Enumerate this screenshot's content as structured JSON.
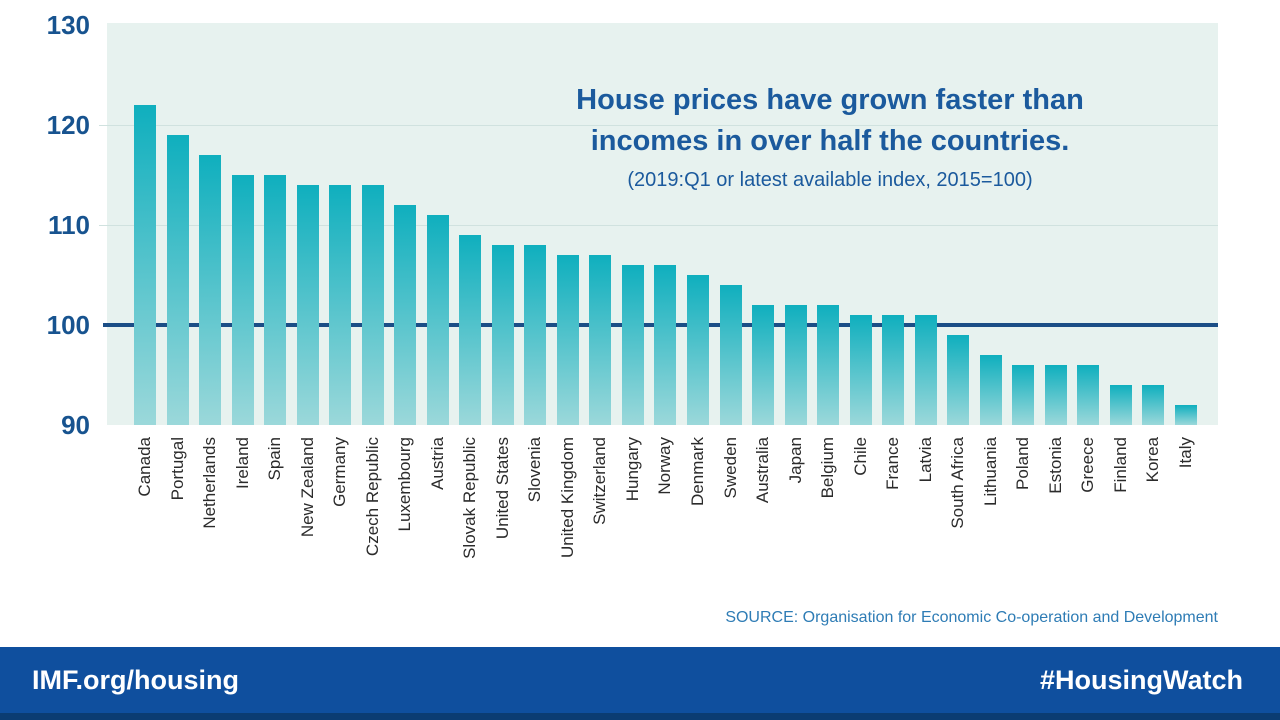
{
  "title": {
    "line1": "House prices have grown faster than",
    "line2": "incomes in over half the countries.",
    "subtitle": "(2019:Q1 or latest available index, 2015=100)"
  },
  "source": "SOURCE: Organisation for Economic Co-operation and Development",
  "footer": {
    "left": "IMF.org/housing",
    "right": "#HousingWatch"
  },
  "colors": {
    "bar_gradient_top": "#0fafbe",
    "bar_gradient_bottom": "#9bd8da",
    "plot_background": "#e7f2ef",
    "gridline": "#d0e2df",
    "reference_line_navy": "#1b4e86",
    "title_navy": "#1b5a9d",
    "axis_label_navy": "#17538f",
    "source_blue": "#2e7cb5",
    "footer_blue": "#0f4f9e",
    "footer_bottom_edge": "#0b3c72",
    "country_label_gray": "#2b2b2b"
  },
  "chart_data": {
    "type": "bar",
    "title": "House prices have grown faster than incomes in over half the countries.",
    "subtitle": "(2019:Q1 or latest available index, 2015=100)",
    "categories": [
      "Canada",
      "Portugal",
      "Netherlands",
      "Ireland",
      "Spain",
      "New Zealand",
      "Germany",
      "Czech Republic",
      "Luxembourg",
      "Austria",
      "Slovak Republic",
      "United States",
      "Slovenia",
      "United Kingdom",
      "Switzerland",
      "Hungary",
      "Norway",
      "Denmark",
      "Sweden",
      "Australia",
      "Japan",
      "Belgium",
      "Chile",
      "France",
      "Latvia",
      "South Africa",
      "Lithuania",
      "Poland",
      "Estonia",
      "Greece",
      "Finland",
      "Korea",
      "Italy"
    ],
    "values": [
      122,
      119,
      117,
      115,
      115,
      114,
      114,
      114,
      112,
      111,
      109,
      108,
      108,
      107,
      107,
      106,
      106,
      105,
      104,
      102,
      102,
      102,
      101,
      101,
      101,
      99,
      97,
      96,
      96,
      96,
      94,
      94,
      92
    ],
    "xlabel": "",
    "ylabel": "",
    "ylim": [
      90,
      130
    ],
    "yticks": [
      130,
      120,
      110,
      100,
      90
    ],
    "gridline_ticks": [
      120,
      110
    ],
    "reference_line": 100,
    "grid": true,
    "legend_position": "none"
  }
}
